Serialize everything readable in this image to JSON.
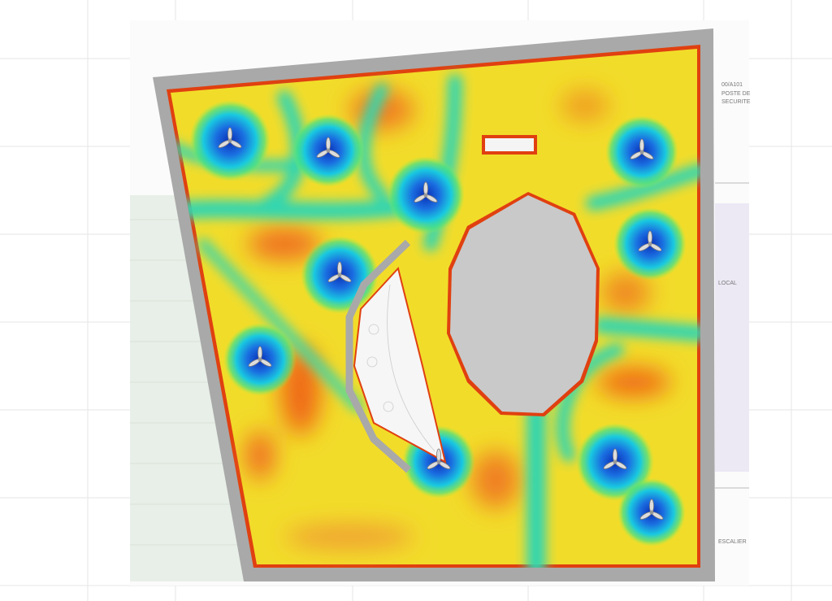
{
  "plan_labels": [
    "00/A101",
    "POSTE DE",
    "SECURITE",
    "LOCAL",
    "ESCALIER"
  ]
}
